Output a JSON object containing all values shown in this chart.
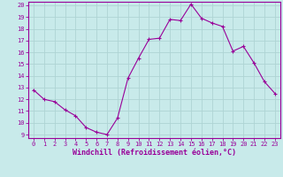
{
  "x": [
    0,
    1,
    2,
    3,
    4,
    5,
    6,
    7,
    8,
    9,
    10,
    11,
    12,
    13,
    14,
    15,
    16,
    17,
    18,
    19,
    20,
    21,
    22,
    23
  ],
  "y": [
    12.8,
    12.0,
    11.8,
    11.1,
    10.6,
    9.6,
    9.2,
    9.0,
    10.4,
    13.8,
    15.5,
    17.1,
    17.2,
    18.8,
    18.7,
    20.1,
    18.9,
    18.5,
    18.2,
    16.1,
    16.5,
    15.1,
    13.5,
    12.5
  ],
  "line_color": "#990099",
  "marker": "+",
  "bg_color": "#c8eaea",
  "grid_color": "#aed4d4",
  "xlabel": "Windchill (Refroidissement éolien,°C)",
  "xlabel_color": "#990099",
  "tick_color": "#990099",
  "spine_color": "#990099",
  "ylim": [
    9,
    20
  ],
  "xlim": [
    -0.5,
    23.5
  ],
  "yticks": [
    9,
    10,
    11,
    12,
    13,
    14,
    15,
    16,
    17,
    18,
    19,
    20
  ],
  "xticks": [
    0,
    1,
    2,
    3,
    4,
    5,
    6,
    7,
    8,
    9,
    10,
    11,
    12,
    13,
    14,
    15,
    16,
    17,
    18,
    19,
    20,
    21,
    22,
    23
  ],
  "tick_fontsize": 5.0,
  "xlabel_fontsize": 6.0,
  "marker_size": 3,
  "linewidth": 0.8
}
